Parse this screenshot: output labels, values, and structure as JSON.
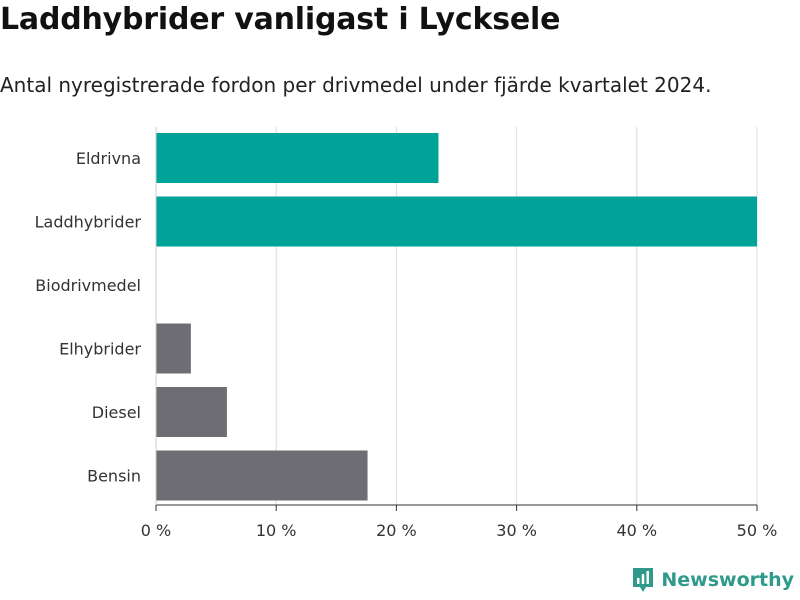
{
  "title": "Laddhybrider vanligast i Lycksele",
  "subtitle": "Antal nyregistrerade fordon per drivmedel under fjärde kvartalet 2024.",
  "chart_data": {
    "type": "bar",
    "orientation": "horizontal",
    "title": "Laddhybrider vanligast i Lycksele",
    "subtitle": "Antal nyregistrerade fordon per drivmedel under fjärde kvartalet 2024.",
    "xlabel": "",
    "ylabel": "",
    "categories": [
      "Eldrivna",
      "Laddhybrider",
      "Biodrivmedel",
      "Elhybrider",
      "Diesel",
      "Bensin"
    ],
    "values": [
      23.5,
      50,
      0,
      2.9,
      5.9,
      17.6
    ],
    "unit": "%",
    "colors": [
      "#00a398",
      "#00a398",
      "#00a398",
      "#6e6d73",
      "#6e6d73",
      "#6e6d73"
    ],
    "xlim": [
      0,
      50
    ],
    "xticks": [
      0,
      10,
      20,
      30,
      40,
      50
    ],
    "xtick_labels": [
      "0 %",
      "10 %",
      "20 %",
      "30 %",
      "40 %",
      "50 %"
    ],
    "grid": true,
    "gridline_color": "#dcdcdc"
  },
  "brand": {
    "name": "Newsworthy",
    "icon": "newsworthy-logo-icon",
    "color": "#2f9a8c"
  }
}
